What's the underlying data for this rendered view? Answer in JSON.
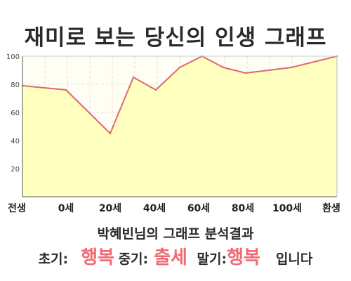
{
  "title": "재미로 보는 당신의 인생 그래프",
  "summary": "박혜빈님의 그래프 분석결과",
  "result": {
    "early_label": "초기:",
    "early_value": "행복",
    "mid_label": "중기:",
    "mid_value": "출세",
    "late_label": "말기:",
    "late_value": "행복",
    "ending": "입니다"
  },
  "chart_data": {
    "type": "area",
    "x_categories": [
      "전생",
      "0세",
      "",
      "20세",
      "",
      "40세",
      "",
      "60세",
      "",
      "80세",
      "",
      "100세",
      "",
      "환생"
    ],
    "x_tick_labels_shown": [
      "전생",
      "0세",
      "20세",
      "40세",
      "60세",
      "80세",
      "100세",
      "환생"
    ],
    "y_ticks": [
      20,
      40,
      60,
      80,
      100
    ],
    "ylim": [
      0,
      100
    ],
    "series": [
      {
        "values": [
          79,
          76,
          45,
          85,
          76,
          92,
          100,
          92,
          88,
          92,
          100
        ]
      }
    ],
    "x_points": [
      0,
      1,
      2,
      2.5,
      3,
      3.5,
      4,
      4.5,
      5,
      6,
      7
    ],
    "grid": true,
    "colors": {
      "line": "#e0686a",
      "fill": "#ffffc0",
      "background": "#fffef4",
      "grid": "#e3e3d0"
    }
  }
}
